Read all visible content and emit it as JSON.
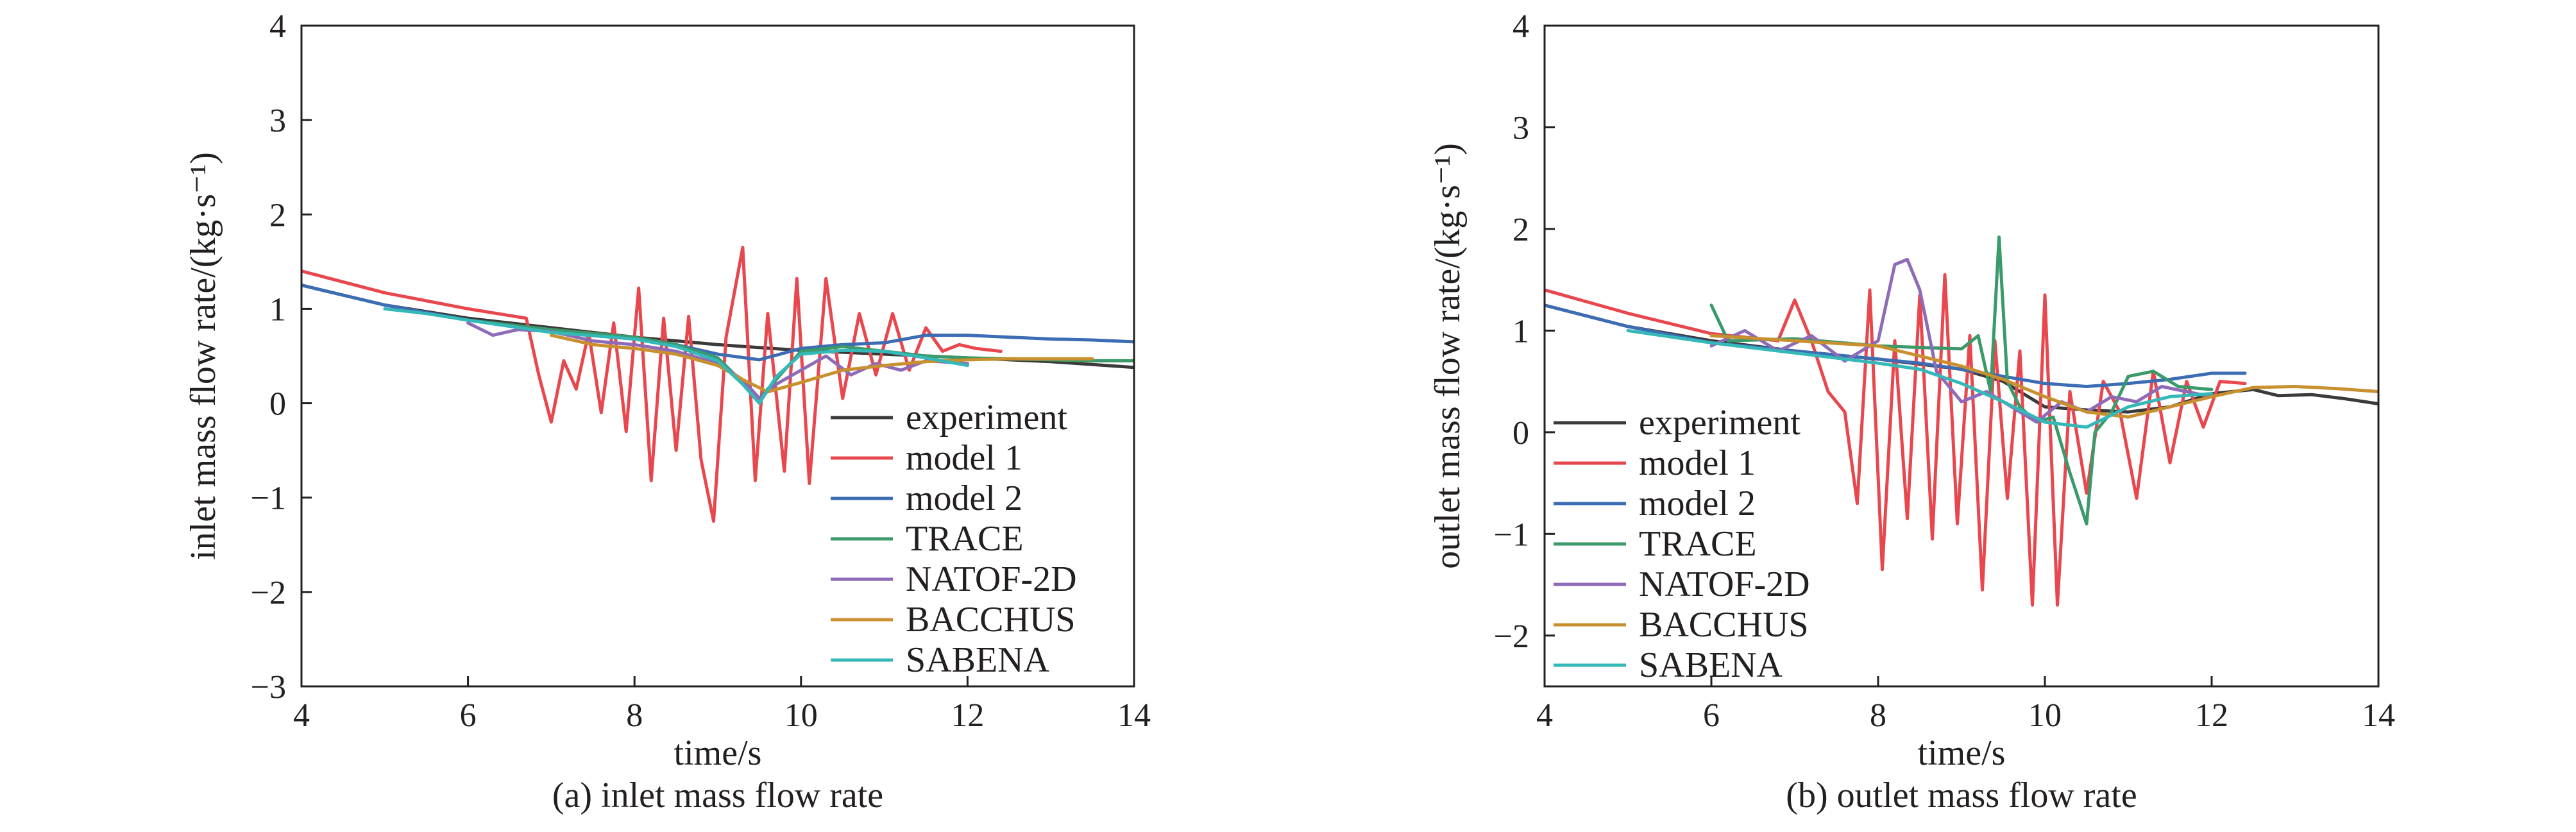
{
  "chart_data": [
    {
      "type": "line",
      "caption": "(a) inlet mass flow rate",
      "xlabel": "time/s",
      "ylabel": "inlet mass flow rate/(kg·s⁻¹)",
      "xlim": [
        4,
        14
      ],
      "ylim": [
        -3,
        4
      ],
      "xticks": [
        4,
        6,
        8,
        10,
        12,
        14
      ],
      "yticks": [
        -3,
        -2,
        -1,
        0,
        1,
        2,
        3,
        4
      ],
      "ytick_labels": [
        "−3",
        "−2",
        "−1",
        "0",
        "1",
        "2",
        "3",
        "4"
      ],
      "legend_position": "lower-right",
      "series": [
        {
          "name": "experiment",
          "color": "#3a3a3a",
          "x": [
            4.0,
            5.0,
            6.0,
            7.0,
            8.0,
            9.0,
            10.0,
            11.0,
            12.0,
            13.0,
            14.0
          ],
          "y": [
            1.25,
            1.04,
            0.9,
            0.8,
            0.7,
            0.62,
            0.56,
            0.52,
            0.48,
            0.44,
            0.38
          ]
        },
        {
          "name": "model 1",
          "color": "#e8474e",
          "x": [
            4.0,
            5.0,
            6.0,
            6.7,
            6.85,
            7.0,
            7.15,
            7.3,
            7.45,
            7.6,
            7.75,
            7.9,
            8.05,
            8.2,
            8.35,
            8.5,
            8.65,
            8.8,
            8.95,
            9.1,
            9.3,
            9.45,
            9.6,
            9.8,
            9.95,
            10.1,
            10.3,
            10.5,
            10.7,
            10.9,
            11.1,
            11.3,
            11.5,
            11.7,
            11.9,
            12.1,
            12.4
          ],
          "y": [
            1.4,
            1.17,
            1.0,
            0.9,
            0.3,
            -0.2,
            0.45,
            0.15,
            0.75,
            -0.1,
            0.85,
            -0.3,
            1.22,
            -0.82,
            0.9,
            -0.5,
            0.92,
            -0.6,
            -1.25,
            0.7,
            1.65,
            -0.82,
            0.95,
            -0.72,
            1.32,
            -0.85,
            1.32,
            0.05,
            0.95,
            0.3,
            0.95,
            0.35,
            0.8,
            0.55,
            0.62,
            0.58,
            0.55
          ]
        },
        {
          "name": "model 2",
          "color": "#3b6cb4",
          "x": [
            4.0,
            5.0,
            6.0,
            7.0,
            8.0,
            8.5,
            9.0,
            9.5,
            10.0,
            10.5,
            11.0,
            11.5,
            12.0,
            12.5,
            13.0,
            13.5,
            14.0
          ],
          "y": [
            1.25,
            1.04,
            0.88,
            0.78,
            0.68,
            0.62,
            0.52,
            0.46,
            0.58,
            0.62,
            0.64,
            0.72,
            0.72,
            0.7,
            0.68,
            0.67,
            0.65
          ]
        },
        {
          "name": "TRACE",
          "color": "#3a9a6a",
          "x": [
            6.0,
            7.0,
            8.0,
            8.5,
            9.0,
            9.3,
            9.5,
            9.8,
            10.0,
            10.5,
            11.0,
            11.5,
            12.0,
            12.5,
            13.0,
            13.5,
            14.0
          ],
          "y": [
            0.88,
            0.78,
            0.7,
            0.62,
            0.48,
            0.22,
            0.05,
            0.35,
            0.55,
            0.6,
            0.55,
            0.5,
            0.48,
            0.47,
            0.46,
            0.45,
            0.45
          ]
        },
        {
          "name": "NATOF-2D",
          "color": "#8e6bb8",
          "x": [
            6.0,
            6.3,
            6.6,
            7.0,
            7.5,
            8.0,
            8.5,
            9.0,
            9.3,
            9.5,
            9.7,
            10.0,
            10.3,
            10.6,
            10.9,
            11.2,
            11.5,
            12.0
          ],
          "y": [
            0.85,
            0.72,
            0.78,
            0.76,
            0.66,
            0.62,
            0.55,
            0.42,
            0.25,
            0.05,
            0.2,
            0.35,
            0.5,
            0.3,
            0.42,
            0.35,
            0.45,
            0.42
          ]
        },
        {
          "name": "BACCHUS",
          "color": "#c8902e",
          "x": [
            7.0,
            7.5,
            8.0,
            8.5,
            9.0,
            9.3,
            9.6,
            10.0,
            10.5,
            11.0,
            11.5,
            12.0,
            12.5,
            13.0,
            13.5
          ],
          "y": [
            0.72,
            0.62,
            0.58,
            0.52,
            0.4,
            0.25,
            0.12,
            0.22,
            0.35,
            0.4,
            0.44,
            0.46,
            0.47,
            0.47,
            0.47
          ]
        },
        {
          "name": "SABENA",
          "color": "#35b8b8",
          "x": [
            5.0,
            5.5,
            6.0,
            7.0,
            8.0,
            8.5,
            9.0,
            9.3,
            9.5,
            9.7,
            10.0,
            10.5,
            11.0,
            11.5,
            12.0
          ],
          "y": [
            1.0,
            0.95,
            0.88,
            0.75,
            0.68,
            0.6,
            0.45,
            0.2,
            0.0,
            0.28,
            0.52,
            0.56,
            0.55,
            0.48,
            0.4
          ]
        }
      ]
    },
    {
      "type": "line",
      "caption": "(b) outlet mass flow rate",
      "xlabel": "time/s",
      "ylabel": "outlet mass flow rate/(kg·s⁻¹)",
      "xlim": [
        4,
        14
      ],
      "ylim": [
        -2.5,
        4
      ],
      "xticks": [
        4,
        6,
        8,
        10,
        12,
        14
      ],
      "yticks": [
        -2,
        -1,
        0,
        1,
        2,
        3,
        4
      ],
      "ytick_labels": [
        "−2",
        "−1",
        "0",
        "1",
        "2",
        "3",
        "4"
      ],
      "legend_position": "lower-left",
      "series": [
        {
          "name": "experiment",
          "color": "#3a3a3a",
          "x": [
            4.0,
            5.0,
            6.0,
            7.0,
            8.0,
            9.0,
            9.5,
            10.0,
            10.5,
            11.0,
            11.5,
            12.0,
            12.5,
            12.8,
            13.2,
            13.6,
            14.0
          ],
          "y": [
            1.25,
            1.04,
            0.9,
            0.8,
            0.72,
            0.62,
            0.5,
            0.25,
            0.22,
            0.2,
            0.25,
            0.38,
            0.42,
            0.36,
            0.37,
            0.33,
            0.28
          ]
        },
        {
          "name": "model 1",
          "color": "#e8474e",
          "x": [
            4.0,
            5.0,
            6.0,
            6.8,
            7.0,
            7.2,
            7.4,
            7.6,
            7.75,
            7.9,
            8.05,
            8.2,
            8.35,
            8.5,
            8.65,
            8.8,
            8.95,
            9.1,
            9.25,
            9.4,
            9.55,
            9.7,
            9.85,
            10.0,
            10.15,
            10.3,
            10.5,
            10.7,
            10.9,
            11.1,
            11.3,
            11.5,
            11.7,
            11.9,
            12.1,
            12.4
          ],
          "y": [
            1.4,
            1.17,
            0.97,
            0.9,
            1.3,
            0.9,
            0.4,
            0.2,
            -0.7,
            1.4,
            -1.35,
            0.9,
            -0.85,
            1.35,
            -1.05,
            1.55,
            -0.9,
            0.95,
            -1.55,
            0.9,
            -0.65,
            0.8,
            -1.7,
            1.35,
            -1.7,
            0.4,
            -0.6,
            0.5,
            0.2,
            -0.65,
            0.6,
            -0.3,
            0.5,
            0.05,
            0.5,
            0.48
          ]
        },
        {
          "name": "model 2",
          "color": "#3b6cb4",
          "x": [
            4.0,
            5.0,
            6.0,
            7.0,
            8.0,
            8.5,
            9.0,
            9.5,
            10.0,
            10.5,
            11.0,
            11.5,
            12.0,
            12.4
          ],
          "y": [
            1.25,
            1.04,
            0.88,
            0.8,
            0.72,
            0.68,
            0.62,
            0.55,
            0.48,
            0.45,
            0.48,
            0.52,
            0.58,
            0.58
          ]
        },
        {
          "name": "TRACE",
          "color": "#3a9a6a",
          "x": [
            6.0,
            6.2,
            7.0,
            8.0,
            9.0,
            9.2,
            9.35,
            9.45,
            9.55,
            9.7,
            9.9,
            10.1,
            10.3,
            10.5,
            10.6,
            10.8,
            11.0,
            11.3,
            11.6,
            12.0
          ],
          "y": [
            1.25,
            0.9,
            0.92,
            0.85,
            0.82,
            0.95,
            0.4,
            1.92,
            0.5,
            0.25,
            0.1,
            0.15,
            -0.4,
            -0.9,
            0.0,
            0.2,
            0.55,
            0.6,
            0.45,
            0.42
          ]
        },
        {
          "name": "NATOF-2D",
          "color": "#8e6bb8",
          "x": [
            6.0,
            6.4,
            6.8,
            7.2,
            7.6,
            8.0,
            8.2,
            8.35,
            8.5,
            8.7,
            9.0,
            9.3,
            9.6,
            9.9,
            10.2,
            10.5,
            10.8,
            11.1,
            11.4,
            11.7,
            12.0
          ],
          "y": [
            0.85,
            1.0,
            0.8,
            0.95,
            0.7,
            0.9,
            1.65,
            1.7,
            1.4,
            0.6,
            0.3,
            0.4,
            0.25,
            0.1,
            0.3,
            0.2,
            0.35,
            0.3,
            0.45,
            0.4,
            0.35
          ]
        },
        {
          "name": "BACCHUS",
          "color": "#c8902e",
          "x": [
            6.0,
            7.0,
            8.0,
            8.5,
            9.0,
            9.5,
            10.0,
            10.5,
            11.0,
            11.5,
            12.0,
            12.5,
            13.0,
            13.5,
            14.0
          ],
          "y": [
            0.95,
            0.9,
            0.85,
            0.75,
            0.65,
            0.52,
            0.35,
            0.2,
            0.15,
            0.25,
            0.35,
            0.44,
            0.45,
            0.43,
            0.4
          ]
        },
        {
          "name": "SABENA",
          "color": "#35b8b8",
          "x": [
            5.0,
            6.0,
            7.0,
            8.0,
            8.5,
            9.0,
            9.5,
            10.0,
            10.5,
            11.0,
            11.5,
            12.0
          ],
          "y": [
            1.0,
            0.88,
            0.78,
            0.68,
            0.62,
            0.48,
            0.3,
            0.1,
            0.05,
            0.25,
            0.35,
            0.38
          ]
        }
      ]
    }
  ]
}
